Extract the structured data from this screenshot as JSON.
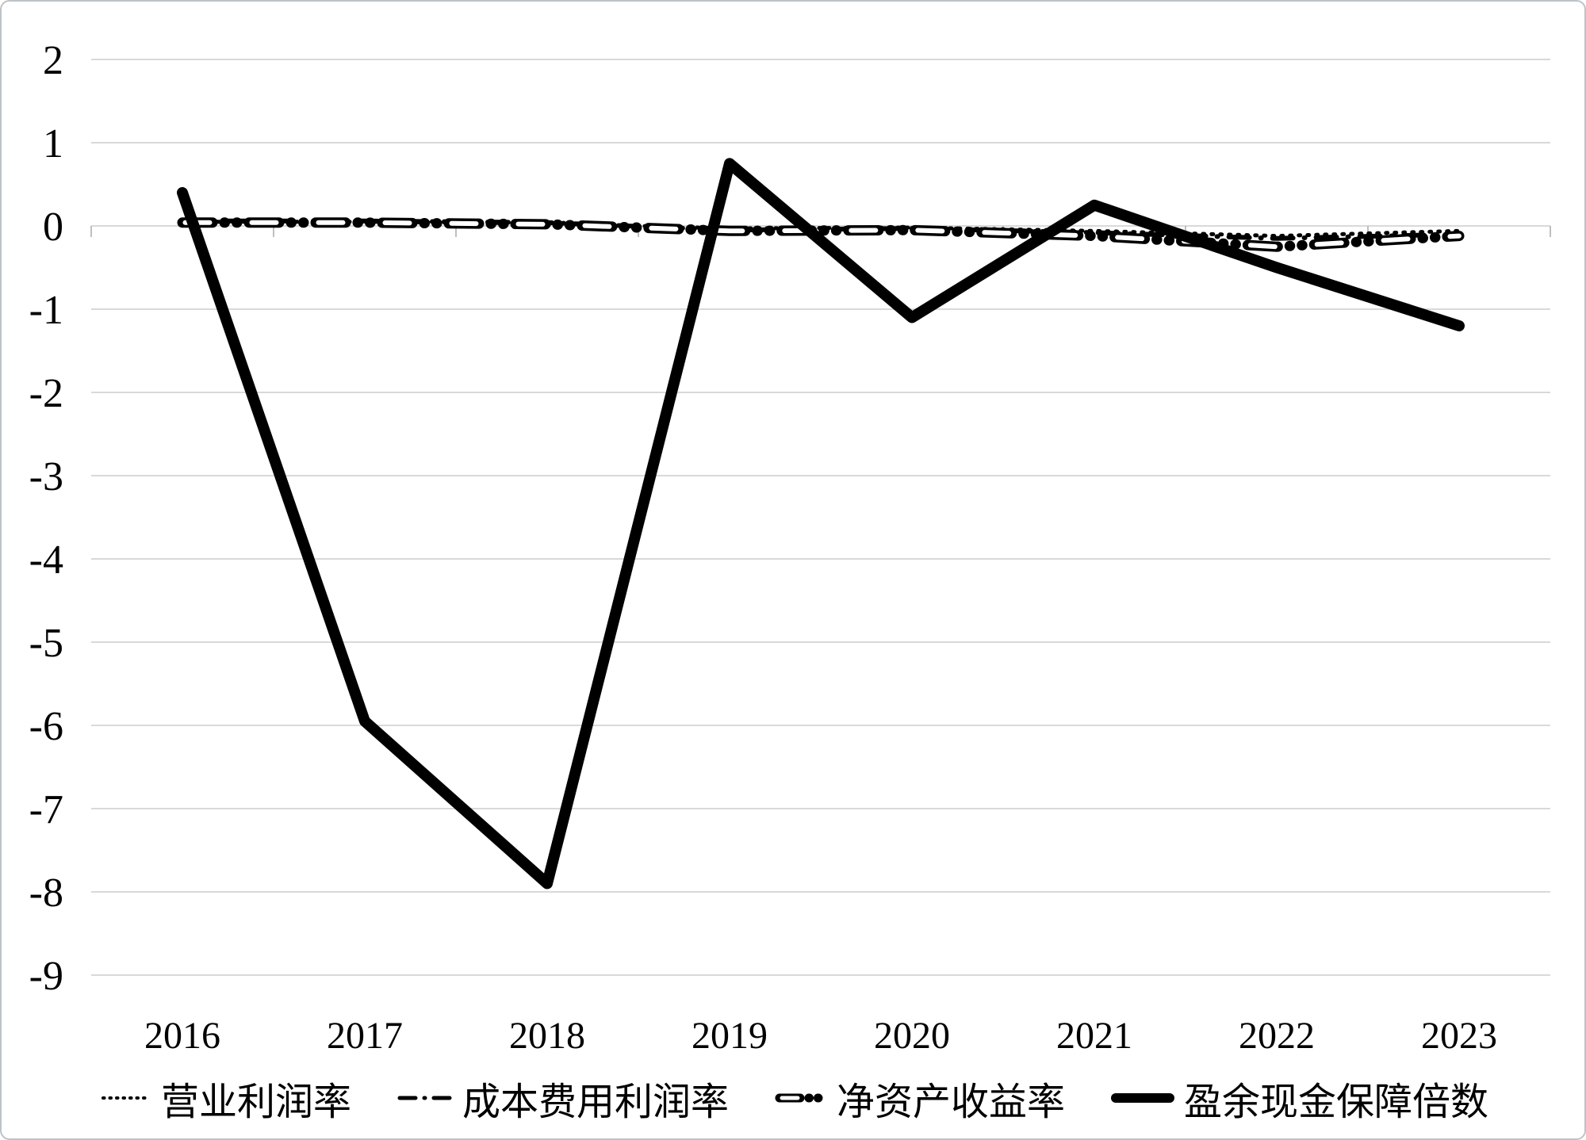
{
  "chart_data": {
    "type": "line",
    "title": "",
    "xlabel": "",
    "ylabel": "",
    "categories": [
      "2016",
      "2017",
      "2018",
      "2019",
      "2020",
      "2021",
      "2022",
      "2023"
    ],
    "series": [
      {
        "name": "营业利润率",
        "style": "dotted",
        "values": [
          0.05,
          0.05,
          0.03,
          -0.03,
          -0.02,
          -0.06,
          -0.12,
          -0.06
        ]
      },
      {
        "name": "成本费用利润率",
        "style": "dash-dot",
        "values": [
          0.06,
          0.06,
          0.04,
          -0.05,
          -0.03,
          -0.08,
          -0.15,
          -0.1
        ]
      },
      {
        "name": "净资产收益率",
        "style": "long-dash-dot-dot-hollow",
        "values": [
          0.04,
          0.04,
          0.02,
          -0.06,
          -0.05,
          -0.12,
          -0.25,
          -0.12
        ]
      },
      {
        "name": "盈余现金保障倍数",
        "style": "thick-solid",
        "values": [
          0.4,
          -5.95,
          -7.9,
          0.75,
          -1.1,
          0.25,
          -0.5,
          -1.2
        ]
      }
    ],
    "ylim": [
      -9,
      2
    ],
    "ytick_step": 1,
    "yticks": [
      "2",
      "1",
      "0",
      "-1",
      "-2",
      "-3",
      "-4",
      "-5",
      "-6",
      "-7",
      "-8",
      "-9"
    ],
    "grid": "horizontal",
    "legend_position": "bottom",
    "colors": {
      "series": "#000000",
      "gridline": "#d9d9d9",
      "axis_tick": "#bfbfbf",
      "label": "#000000",
      "frame": "#bdc3c7",
      "background": "#ffffff"
    }
  }
}
